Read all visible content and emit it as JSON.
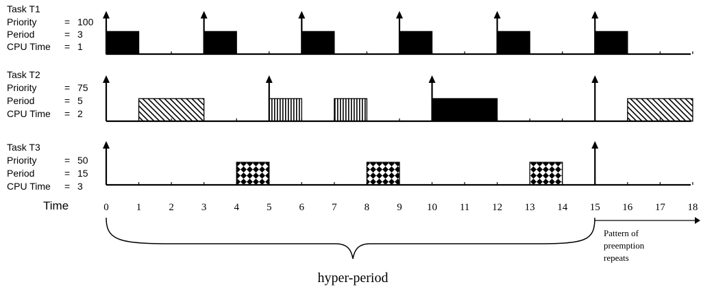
{
  "tasks": [
    {
      "name": "Task T1",
      "labels": [
        "Priority",
        "Period",
        "CPU Time"
      ],
      "values": [
        "100",
        "3",
        "1"
      ],
      "arrival_times": [
        0,
        3,
        6,
        9,
        12,
        15
      ],
      "executions": [
        {
          "start": 0,
          "end": 1,
          "pattern": "solid"
        },
        {
          "start": 3,
          "end": 4,
          "pattern": "solid"
        },
        {
          "start": 6,
          "end": 7,
          "pattern": "solid"
        },
        {
          "start": 9,
          "end": 10,
          "pattern": "solid"
        },
        {
          "start": 12,
          "end": 13,
          "pattern": "solid"
        },
        {
          "start": 15,
          "end": 16,
          "pattern": "solid"
        }
      ]
    },
    {
      "name": "Task T2",
      "labels": [
        "Priority",
        "Period",
        "CPU Time"
      ],
      "values": [
        "75",
        "5",
        "2"
      ],
      "arrival_times": [
        0,
        5,
        10,
        15
      ],
      "executions": [
        {
          "start": 1,
          "end": 3,
          "pattern": "diagonal"
        },
        {
          "start": 5,
          "end": 6,
          "pattern": "vertical"
        },
        {
          "start": 7,
          "end": 8,
          "pattern": "vertical"
        },
        {
          "start": 10,
          "end": 12,
          "pattern": "solid"
        },
        {
          "start": 16,
          "end": 18,
          "pattern": "diagonal"
        }
      ]
    },
    {
      "name": "Task T3",
      "labels": [
        "Priority",
        "Period",
        "CPU Time"
      ],
      "values": [
        "50",
        "15",
        "3"
      ],
      "arrival_times": [
        0,
        15
      ],
      "executions": [
        {
          "start": 4,
          "end": 5,
          "pattern": "checker"
        },
        {
          "start": 8,
          "end": 9,
          "pattern": "checker"
        },
        {
          "start": 13,
          "end": 14,
          "pattern": "checker"
        }
      ]
    }
  ],
  "time_axis": {
    "label": "Time",
    "ticks": [
      "0",
      "1",
      "2",
      "3",
      "4",
      "5",
      "6",
      "7",
      "8",
      "9",
      "10",
      "11",
      "12",
      "13",
      "14",
      "15",
      "16",
      "17",
      "18"
    ]
  },
  "annotations": {
    "hyper_period": "hyper-period",
    "pattern_note": [
      "Pattern of",
      "preemption",
      "repeats"
    ]
  },
  "colors": {
    "ink": "#000000",
    "background": "#ffffff"
  }
}
